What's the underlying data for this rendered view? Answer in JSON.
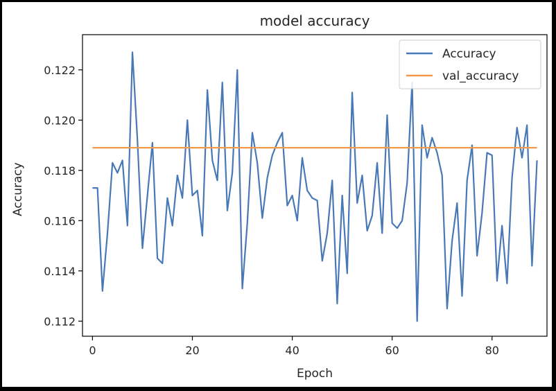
{
  "chart_data": {
    "type": "line",
    "title": "model accuracy",
    "xlabel": "Epoch",
    "ylabel": "Accuracy",
    "xlim": [
      -2,
      91
    ],
    "ylim": [
      0.1114,
      0.1234
    ],
    "xticks": [
      0,
      20,
      40,
      60,
      80
    ],
    "xtick_labels": [
      "0",
      "20",
      "40",
      "60",
      "80"
    ],
    "yticks": [
      0.112,
      0.114,
      0.116,
      0.118,
      0.12,
      0.122
    ],
    "ytick_labels": [
      "0.112",
      "0.114",
      "0.116",
      "0.118",
      "0.120",
      "0.122"
    ],
    "grid": false,
    "legend_position": "upper right",
    "series": [
      {
        "name": "Accuracy",
        "color": "#4878b5",
        "x": [
          0,
          1,
          2,
          3,
          4,
          5,
          6,
          7,
          8,
          9,
          10,
          11,
          12,
          13,
          14,
          15,
          16,
          17,
          18,
          19,
          20,
          21,
          22,
          23,
          24,
          25,
          26,
          27,
          28,
          29,
          30,
          31,
          32,
          33,
          34,
          35,
          36,
          37,
          38,
          39,
          40,
          41,
          42,
          43,
          44,
          45,
          46,
          47,
          48,
          49,
          50,
          51,
          52,
          53,
          54,
          55,
          56,
          57,
          58,
          59,
          60,
          61,
          62,
          63,
          64,
          65,
          66,
          67,
          68,
          69,
          70,
          71,
          72,
          73,
          74,
          75,
          76,
          77,
          78,
          79,
          80,
          81,
          82,
          83,
          84,
          85,
          86,
          87,
          88,
          89
        ],
        "values": [
          0.1173,
          0.1173,
          0.1132,
          0.1155,
          0.1183,
          0.1179,
          0.1184,
          0.1158,
          0.1227,
          0.1192,
          0.1149,
          0.117,
          0.1191,
          0.1145,
          0.1143,
          0.1169,
          0.1158,
          0.1178,
          0.1169,
          0.12,
          0.117,
          0.1172,
          0.1154,
          0.1212,
          0.1184,
          0.1176,
          0.1215,
          0.1164,
          0.1179,
          0.122,
          0.1133,
          0.1159,
          0.1195,
          0.1183,
          0.1161,
          0.1177,
          0.1186,
          0.1191,
          0.1195,
          0.1166,
          0.117,
          0.116,
          0.1185,
          0.1172,
          0.1169,
          0.1168,
          0.1144,
          0.1155,
          0.1176,
          0.1127,
          0.117,
          0.1139,
          0.1211,
          0.1167,
          0.1178,
          0.1156,
          0.1162,
          0.1183,
          0.1155,
          0.1202,
          0.1159,
          0.1157,
          0.116,
          0.1175,
          0.1215,
          0.112,
          0.1198,
          0.1185,
          0.1193,
          0.1187,
          0.1178,
          0.1125,
          0.1152,
          0.1167,
          0.113,
          0.1176,
          0.119,
          0.1146,
          0.1163,
          0.1187,
          0.1186,
          0.1136,
          0.1158,
          0.1135,
          0.1177,
          0.1197,
          0.1185,
          0.1198,
          0.1142,
          0.1184
        ]
      },
      {
        "name": "val_accuracy",
        "color": "#f39a4a",
        "x": [
          0,
          89
        ],
        "values": [
          0.1189,
          0.1189
        ]
      }
    ]
  }
}
